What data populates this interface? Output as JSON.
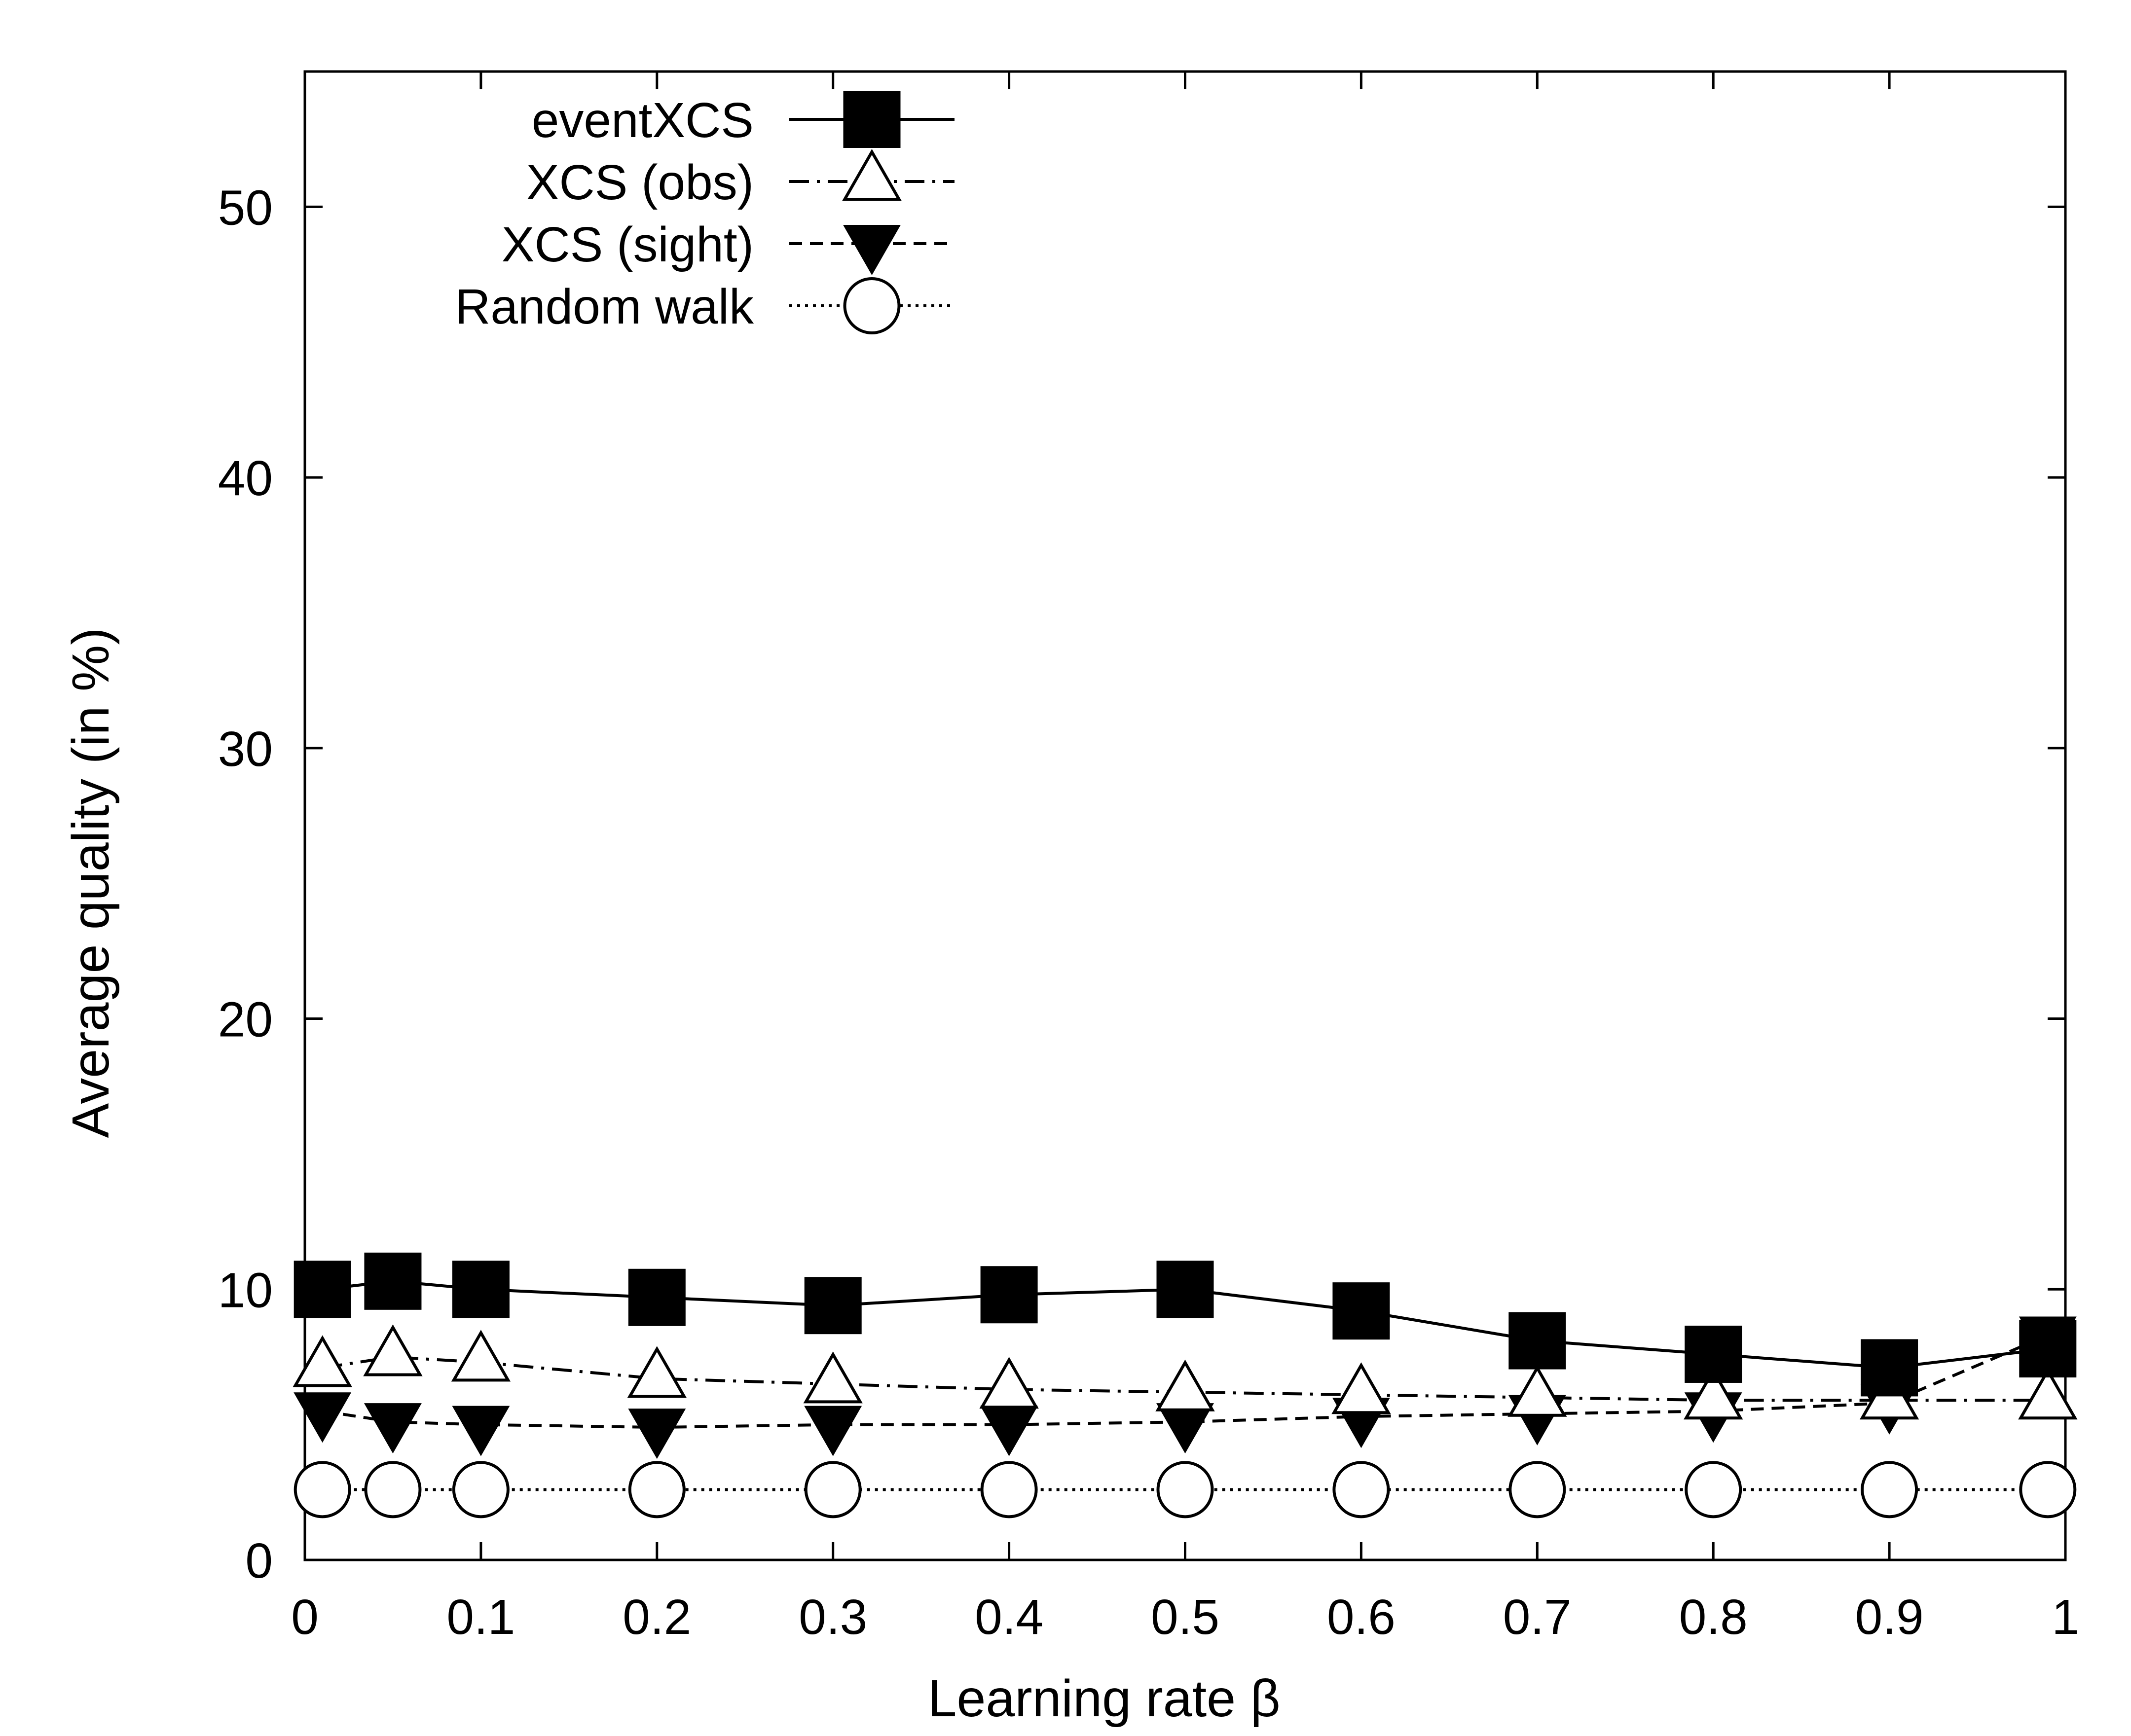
{
  "chart_data": {
    "type": "line",
    "title": "",
    "xlabel": "Learning rate β",
    "ylabel": "Average quality (in %)",
    "xlim": [
      0,
      1
    ],
    "ylim": [
      0,
      55
    ],
    "xticks": [
      0,
      0.1,
      0.2,
      0.3,
      0.4,
      0.5,
      0.6,
      0.7,
      0.8,
      0.9,
      1
    ],
    "xtick_labels": [
      "0",
      "0.1",
      "0.2",
      "0.3",
      "0.4",
      "0.5",
      "0.6",
      "0.7",
      "0.8",
      "0.9",
      "1"
    ],
    "yticks": [
      0,
      10,
      20,
      30,
      40,
      50
    ],
    "ytick_labels": [
      "0",
      "10",
      "20",
      "30",
      "40",
      "50"
    ],
    "grid": false,
    "legend_position": "top-left",
    "x": [
      0.01,
      0.05,
      0.1,
      0.2,
      0.3,
      0.4,
      0.5,
      0.6,
      0.7,
      0.8,
      0.9,
      0.99
    ],
    "series": [
      {
        "name": "eventXCS",
        "marker": "filled-square",
        "line": "solid",
        "color": "#000000",
        "values": [
          10.0,
          10.3,
          10.0,
          9.7,
          9.4,
          9.8,
          10.0,
          9.2,
          8.1,
          7.6,
          7.1,
          7.8
        ]
      },
      {
        "name": "XCS (obs)",
        "marker": "open-triangle-up",
        "line": "dash-dot",
        "color": "#000000",
        "values": [
          7.1,
          7.5,
          7.3,
          6.7,
          6.5,
          6.3,
          6.2,
          6.1,
          6.0,
          5.9,
          5.9,
          5.9
        ]
      },
      {
        "name": "XCS (sight)",
        "marker": "filled-triangle-down",
        "line": "dashed",
        "color": "#000000",
        "values": [
          5.5,
          5.1,
          5.0,
          4.9,
          5.0,
          5.0,
          5.1,
          5.3,
          5.4,
          5.5,
          5.8,
          8.3
        ]
      },
      {
        "name": "Random walk",
        "marker": "open-circle",
        "line": "dotted",
        "color": "#000000",
        "values": [
          2.6,
          2.6,
          2.6,
          2.6,
          2.6,
          2.6,
          2.6,
          2.6,
          2.6,
          2.6,
          2.6,
          2.6
        ]
      }
    ]
  }
}
